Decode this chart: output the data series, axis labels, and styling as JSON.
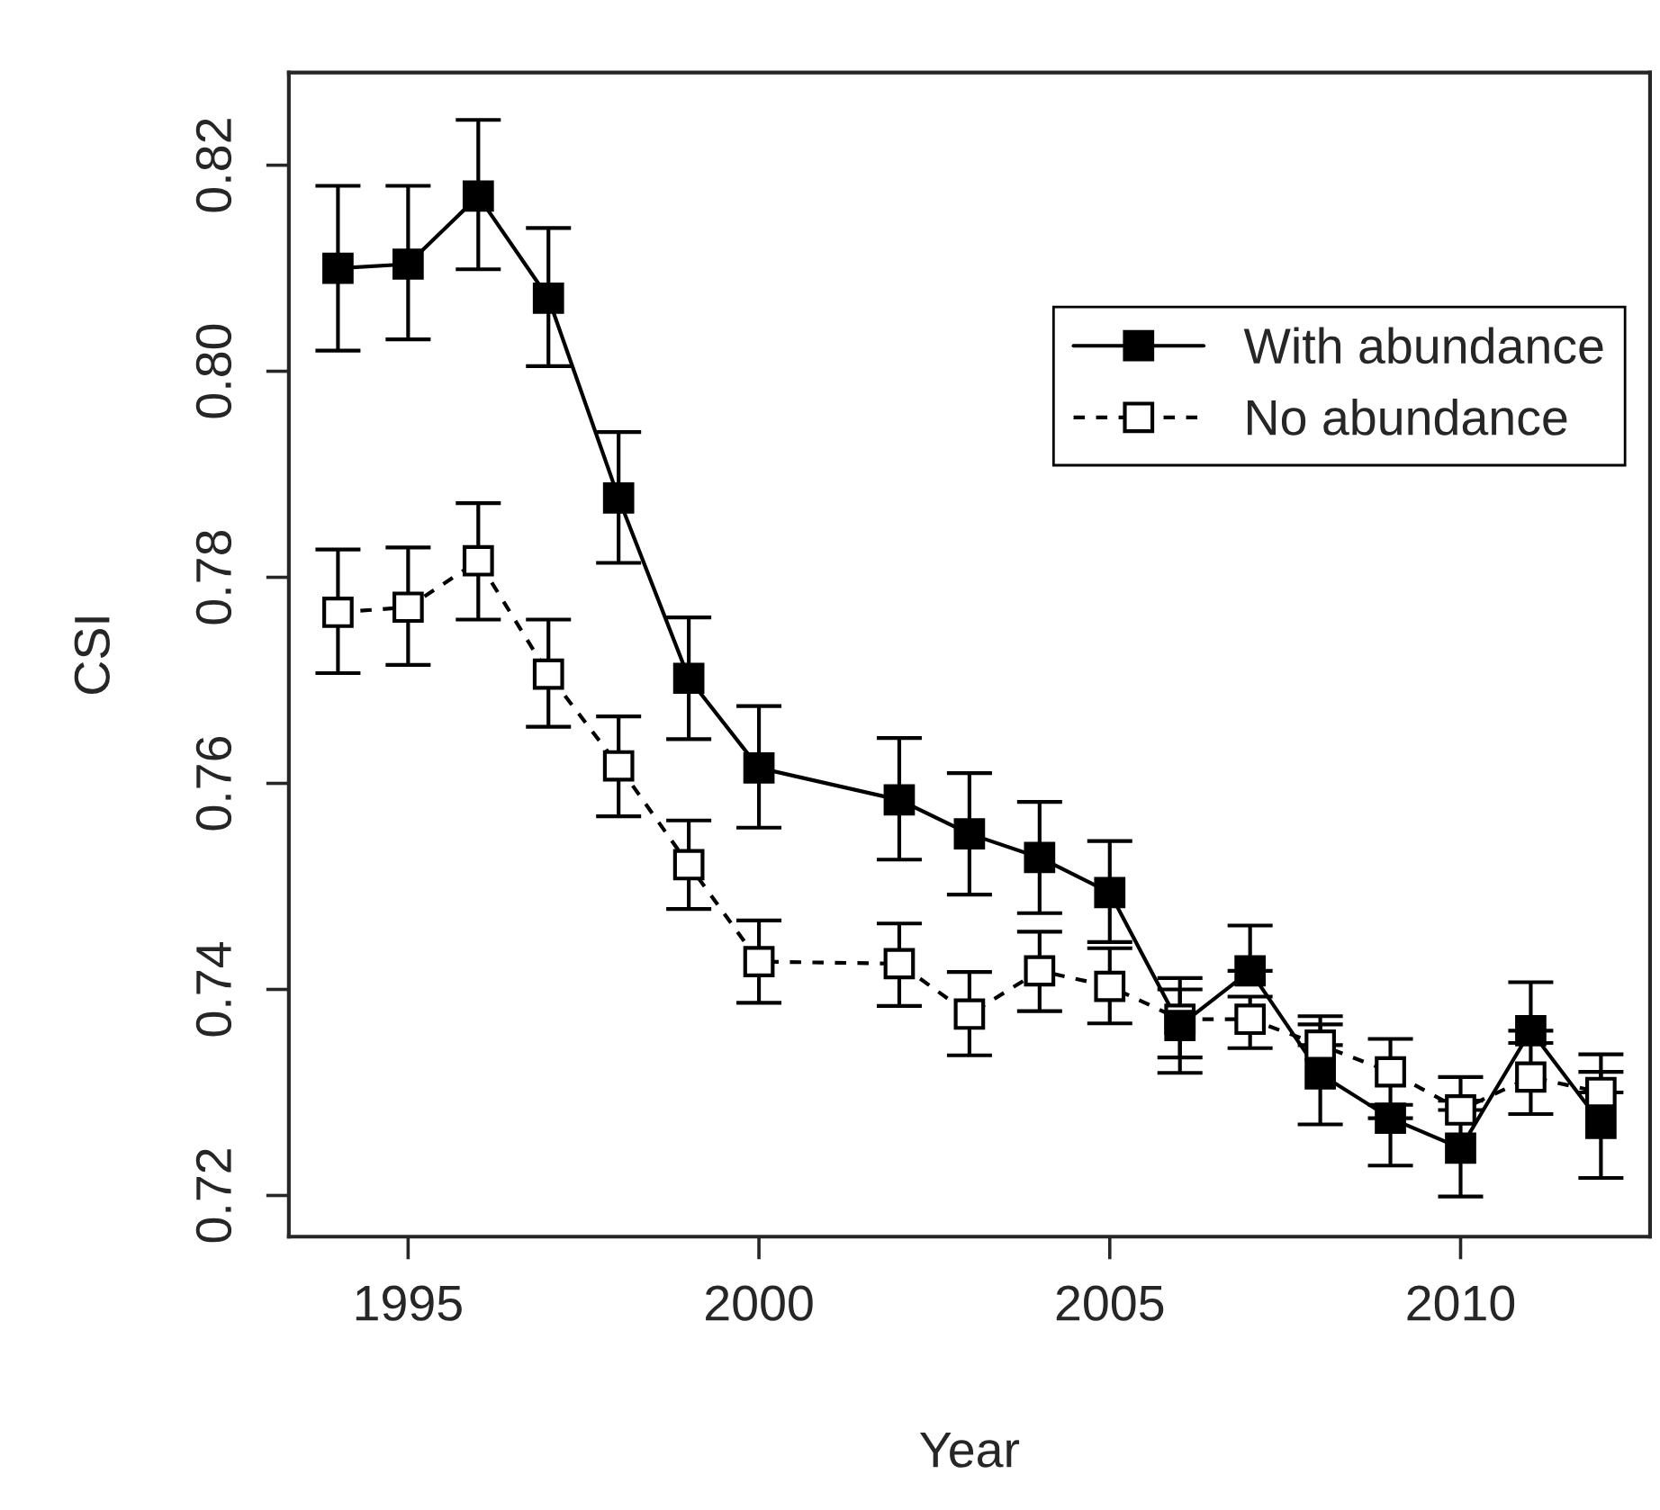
{
  "chart_data": {
    "type": "line",
    "xlabel": "Year",
    "ylabel": "CSI",
    "xlim": [
      1993.3,
      2012.7
    ],
    "xticks": [
      1995,
      2000,
      2005,
      2010
    ],
    "ylim": [
      0.716,
      0.829
    ],
    "yticks": [
      0.72,
      0.74,
      0.76,
      0.78,
      {
        "value": 0.8,
        "label": "0.80"
      },
      0.82
    ],
    "grid": false,
    "legend": "top right",
    "series": [
      {
        "name": "With abundance",
        "color": "#000000",
        "marker": "square",
        "line_style": "solid",
        "x": [
          1994,
          1995,
          1996,
          1997,
          1998,
          1999,
          2000,
          2002,
          2003,
          2004,
          2005,
          2006,
          2007,
          2008,
          2009,
          2010,
          2011,
          2012
        ],
        "values": [
          0.81,
          0.8104,
          0.817,
          0.8071,
          0.7877,
          0.7702,
          0.7615,
          0.7584,
          0.7551,
          0.7528,
          0.7494,
          0.7365,
          0.7418,
          0.7318,
          0.7275,
          0.7246,
          0.736,
          0.727
        ],
        "errors": [
          [
            0.802,
            0.818
          ],
          [
            0.8031,
            0.818
          ],
          [
            0.8099,
            0.8244
          ],
          [
            0.8005,
            0.8139
          ],
          [
            0.7814,
            0.7941
          ],
          [
            0.7643,
            0.7761
          ],
          [
            0.7557,
            0.7675
          ],
          [
            0.7526,
            0.7644
          ],
          [
            0.7492,
            0.761
          ],
          [
            0.7474,
            0.7582
          ],
          [
            0.7446,
            0.7544
          ],
          [
            0.7319,
            0.7411
          ],
          [
            0.7418,
            0.7462
          ],
          [
            0.7269,
            0.7366
          ],
          [
            0.7229,
            0.7275
          ],
          [
            0.7199,
            0.7292
          ],
          [
            0.736,
            0.7407
          ],
          [
            0.7217,
            0.732
          ]
        ]
      },
      {
        "name": "No abundance",
        "color": "#000000",
        "marker": "square",
        "line_style": "dashed",
        "x": [
          1994,
          1995,
          1996,
          1997,
          1998,
          1999,
          2000,
          2002,
          2003,
          2004,
          2005,
          2006,
          2007,
          2008,
          2009,
          2010,
          2011,
          2012
        ],
        "values": [
          0.7766,
          0.7771,
          0.7816,
          0.7706,
          0.7617,
          0.7521,
          0.7427,
          0.7425,
          0.7376,
          0.7418,
          0.7403,
          0.7371,
          0.7371,
          0.7346,
          0.732,
          0.7283,
          0.7315,
          0.73
        ],
        "errors": [
          [
            0.7707,
            0.7827
          ],
          [
            0.7715,
            0.7829
          ],
          [
            0.7759,
            0.7872
          ],
          [
            0.7655,
            0.7759
          ],
          [
            0.7568,
            0.7665
          ],
          [
            0.7478,
            0.7564
          ],
          [
            0.7387,
            0.7467
          ],
          [
            0.7384,
            0.7464
          ],
          [
            0.7336,
            0.7417
          ],
          [
            0.7379,
            0.7456
          ],
          [
            0.7367,
            0.744
          ],
          [
            0.7334,
            0.74
          ],
          [
            0.7343,
            0.7393
          ],
          [
            0.7346,
            0.7374
          ],
          [
            0.7288,
            0.7352
          ],
          [
            0.7283,
            0.7315
          ],
          [
            0.7279,
            0.7348
          ],
          [
            0.73,
            0.7337
          ]
        ]
      }
    ]
  }
}
